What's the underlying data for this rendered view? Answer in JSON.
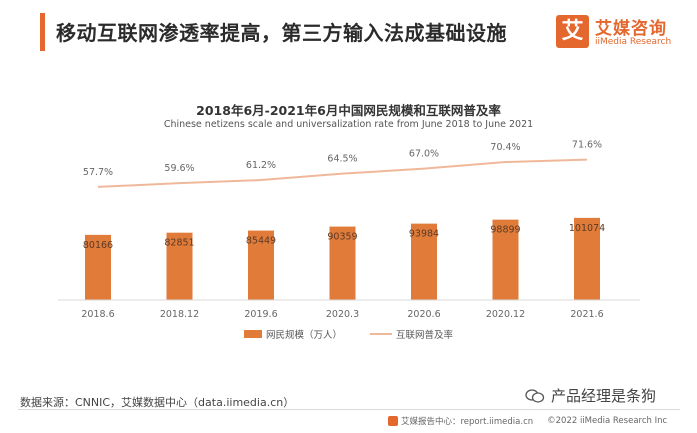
{
  "header": {
    "headline": "移动互联网渗透率提高，第三方输入法成基础设施",
    "logo_mark": "艾",
    "logo_cn": "艾媒咨询",
    "logo_en": "iiMedia Research"
  },
  "colors": {
    "accent": "#e4672e",
    "bar": "#e07b39",
    "line": "#f0b89a"
  },
  "chart_data": {
    "type": "bar",
    "title": "2018年6月-2021年6月中国网民规模和互联网普及率",
    "subtitle": "Chinese netizens scale and universalization rate from June 2018 to June 2021",
    "categories": [
      "2018.6",
      "2018.12",
      "2019.6",
      "2020.3",
      "2020.6",
      "2020.12",
      "2021.6"
    ],
    "series": [
      {
        "name": "网民规模（万人）",
        "kind": "bar",
        "values": [
          80166,
          82851,
          85449,
          90359,
          93984,
          98899,
          101074
        ],
        "labels": [
          "80166",
          "82851",
          "85449",
          "90359",
          "93984",
          "98899",
          "101074"
        ]
      },
      {
        "name": "互联网普及率",
        "kind": "line",
        "values": [
          57.7,
          59.6,
          61.2,
          64.5,
          67.0,
          70.4,
          71.6
        ],
        "labels": [
          "57.7%",
          "59.6%",
          "61.2%",
          "64.5%",
          "67.0%",
          "70.4%",
          "71.6%"
        ]
      }
    ],
    "bar_axis_range": [
      0,
      160000
    ],
    "line_axis_range": [
      0,
      100
    ],
    "grid": false,
    "legend_position": "bottom"
  },
  "footer": {
    "source": "数据来源：CNNIC，艾媒数据中心（data.iimedia.cn）",
    "report_center": "艾媒报告中心：report.iimedia.cn",
    "copyright": "©2022 iiMedia Research Inc",
    "watermark": "产品经理是条狗"
  }
}
